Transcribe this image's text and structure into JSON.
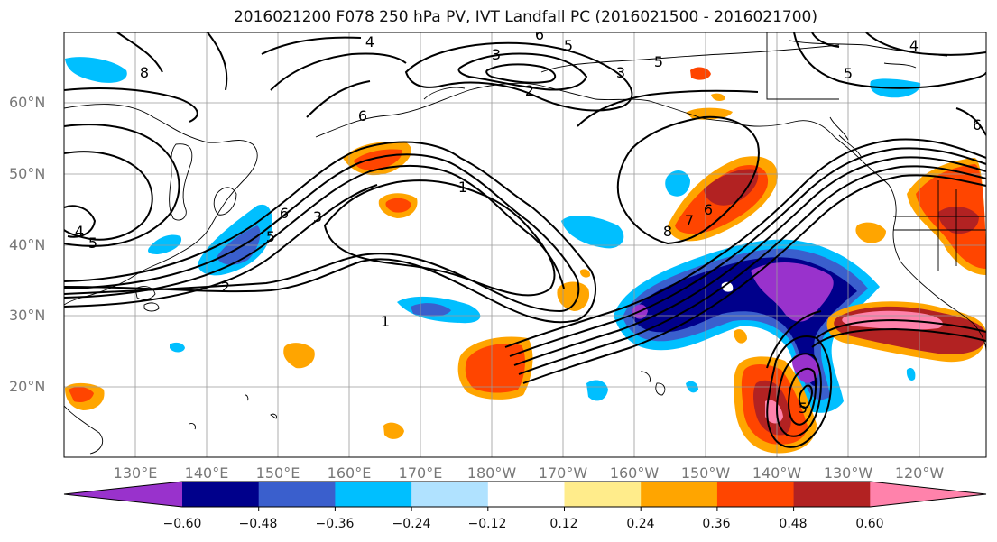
{
  "title": "2016021200 F078 250 hPa PV, IVT Landfall PC (2016021500 - 2016021700)",
  "map": {
    "lat_labels": [
      "60°N",
      "50°N",
      "40°N",
      "30°N",
      "20°N"
    ],
    "lat_values": [
      60,
      50,
      40,
      30,
      20
    ],
    "lon_labels": [
      "130°E",
      "140°E",
      "150°E",
      "160°E",
      "170°E",
      "180°W",
      "170°W",
      "160°W",
      "150°W",
      "140°W",
      "130°W",
      "120°W"
    ],
    "lon_values": [
      130,
      140,
      150,
      160,
      170,
      180,
      190,
      200,
      210,
      220,
      230,
      240
    ],
    "contour_labels": [
      "4",
      "6",
      "5",
      "3",
      "2",
      "3",
      "5",
      "5",
      "4",
      "6",
      "8",
      "5",
      "6",
      "4",
      "5",
      "3",
      "2",
      "1",
      "1",
      "8",
      "7",
      "6",
      "5",
      "6"
    ]
  },
  "colorbar": {
    "labels": [
      "−0.60",
      "−0.48",
      "−0.36",
      "−0.24",
      "−0.12",
      "0.12",
      "0.24",
      "0.36",
      "0.48",
      "0.60"
    ],
    "colors": [
      "#9932cc",
      "#00008b",
      "#3a5fcd",
      "#00bfff",
      "#b0e2ff",
      "#ffffff",
      "#ffec8b",
      "#ffa500",
      "#ff4500",
      "#b22222",
      "#ff82ab"
    ]
  }
}
